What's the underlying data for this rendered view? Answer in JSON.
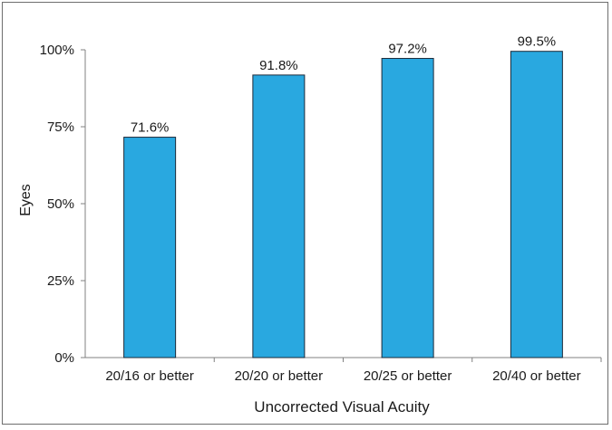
{
  "chart_data": {
    "type": "bar",
    "title": "",
    "xlabel": "Uncorrected Visual Acuity",
    "ylabel": "Eyes",
    "categories": [
      "20/16 or better",
      "20/20 or better",
      "20/25 or better",
      "20/40 or better"
    ],
    "values": [
      71.6,
      91.8,
      97.2,
      99.5
    ],
    "value_labels": [
      "71.6%",
      "91.8%",
      "97.2%",
      "99.5%"
    ],
    "ylim": [
      0,
      100
    ],
    "y_ticks": [
      0,
      25,
      50,
      75,
      100
    ],
    "y_tick_labels": [
      "0%",
      "25%",
      "50%",
      "75%",
      "100%"
    ],
    "grid": false,
    "legend": "none",
    "colors": {
      "bar_fill": "#29a8e0",
      "bar_stroke": "#1b2a3a",
      "axis": "#808080"
    }
  }
}
